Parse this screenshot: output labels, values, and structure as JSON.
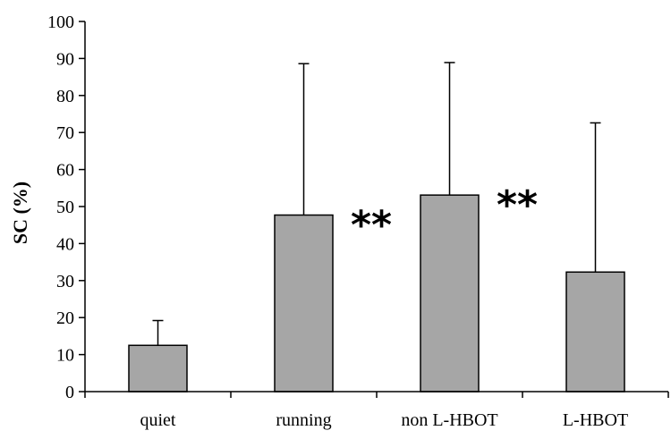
{
  "chart_data": {
    "type": "bar",
    "categories": [
      "quiet",
      "running",
      "non L-HBOT",
      "L-HBOT"
    ],
    "values": [
      12.5,
      47.7,
      53.1,
      32.3
    ],
    "error_upper": [
      19.2,
      88.6,
      88.9,
      72.6
    ],
    "annotations": [
      {
        "category": "running",
        "text": "**"
      },
      {
        "category": "non L-HBOT",
        "text": "**"
      }
    ],
    "title": "",
    "xlabel": "",
    "ylabel": "SC (%)",
    "ylim": [
      0,
      100
    ],
    "yticks": [
      0,
      10,
      20,
      30,
      40,
      50,
      60,
      70,
      80,
      90,
      100
    ],
    "bar_color": "#a6a6a6",
    "grid": false,
    "legend": "none"
  }
}
